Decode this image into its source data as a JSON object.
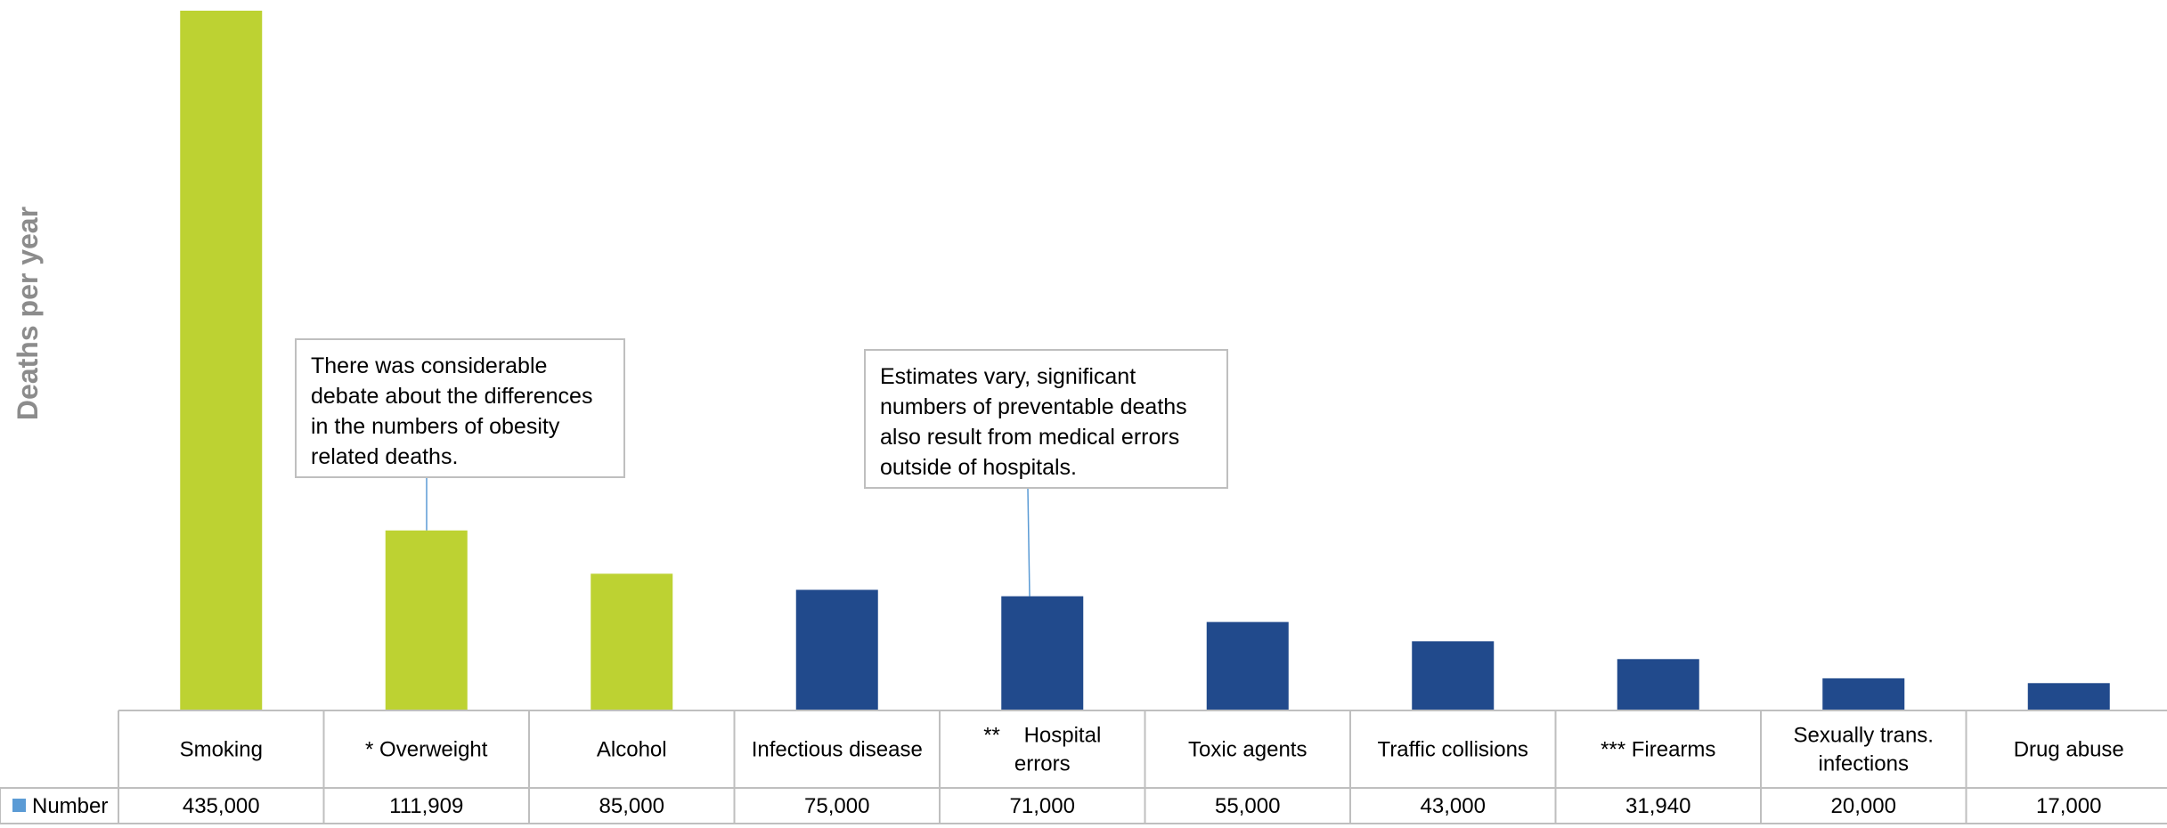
{
  "chart_data": {
    "type": "bar",
    "title": "",
    "ylabel": "Deaths per year",
    "xlabel": "",
    "ylim": [
      0,
      435000
    ],
    "categories": [
      "Smoking",
      "* Overweight",
      "Alcohol",
      "Infectious disease",
      "**    Hospital errors",
      "Toxic agents",
      "Traffic collisions",
      "*** Firearms",
      "Sexually trans. infections",
      "Drug abuse"
    ],
    "series": [
      {
        "name": "Number",
        "values": [
          435000,
          111909,
          85000,
          75000,
          71000,
          55000,
          43000,
          31940,
          20000,
          17000
        ],
        "value_labels": [
          "435,000",
          "111,909",
          "85,000",
          "75,000",
          "71,000",
          "55,000",
          "43,000",
          "31,940",
          "20,000",
          "17,000"
        ],
        "bar_colors": [
          "#bdd232",
          "#bdd232",
          "#bdd232",
          "#214a8c",
          "#214a8c",
          "#214a8c",
          "#214a8c",
          "#214a8c",
          "#214a8c",
          "#214a8c"
        ]
      }
    ],
    "legend_marker_color": "#5b9bd5",
    "legend": "data-table",
    "grid": false,
    "annotations": [
      {
        "target": "* Overweight",
        "text": "There was considerable debate about the differences in the numbers of obesity related deaths."
      },
      {
        "target": "**    Hospital errors",
        "text": "Estimates vary, significant numbers of preventable deaths also result from medical errors outside of hospitals."
      }
    ]
  }
}
